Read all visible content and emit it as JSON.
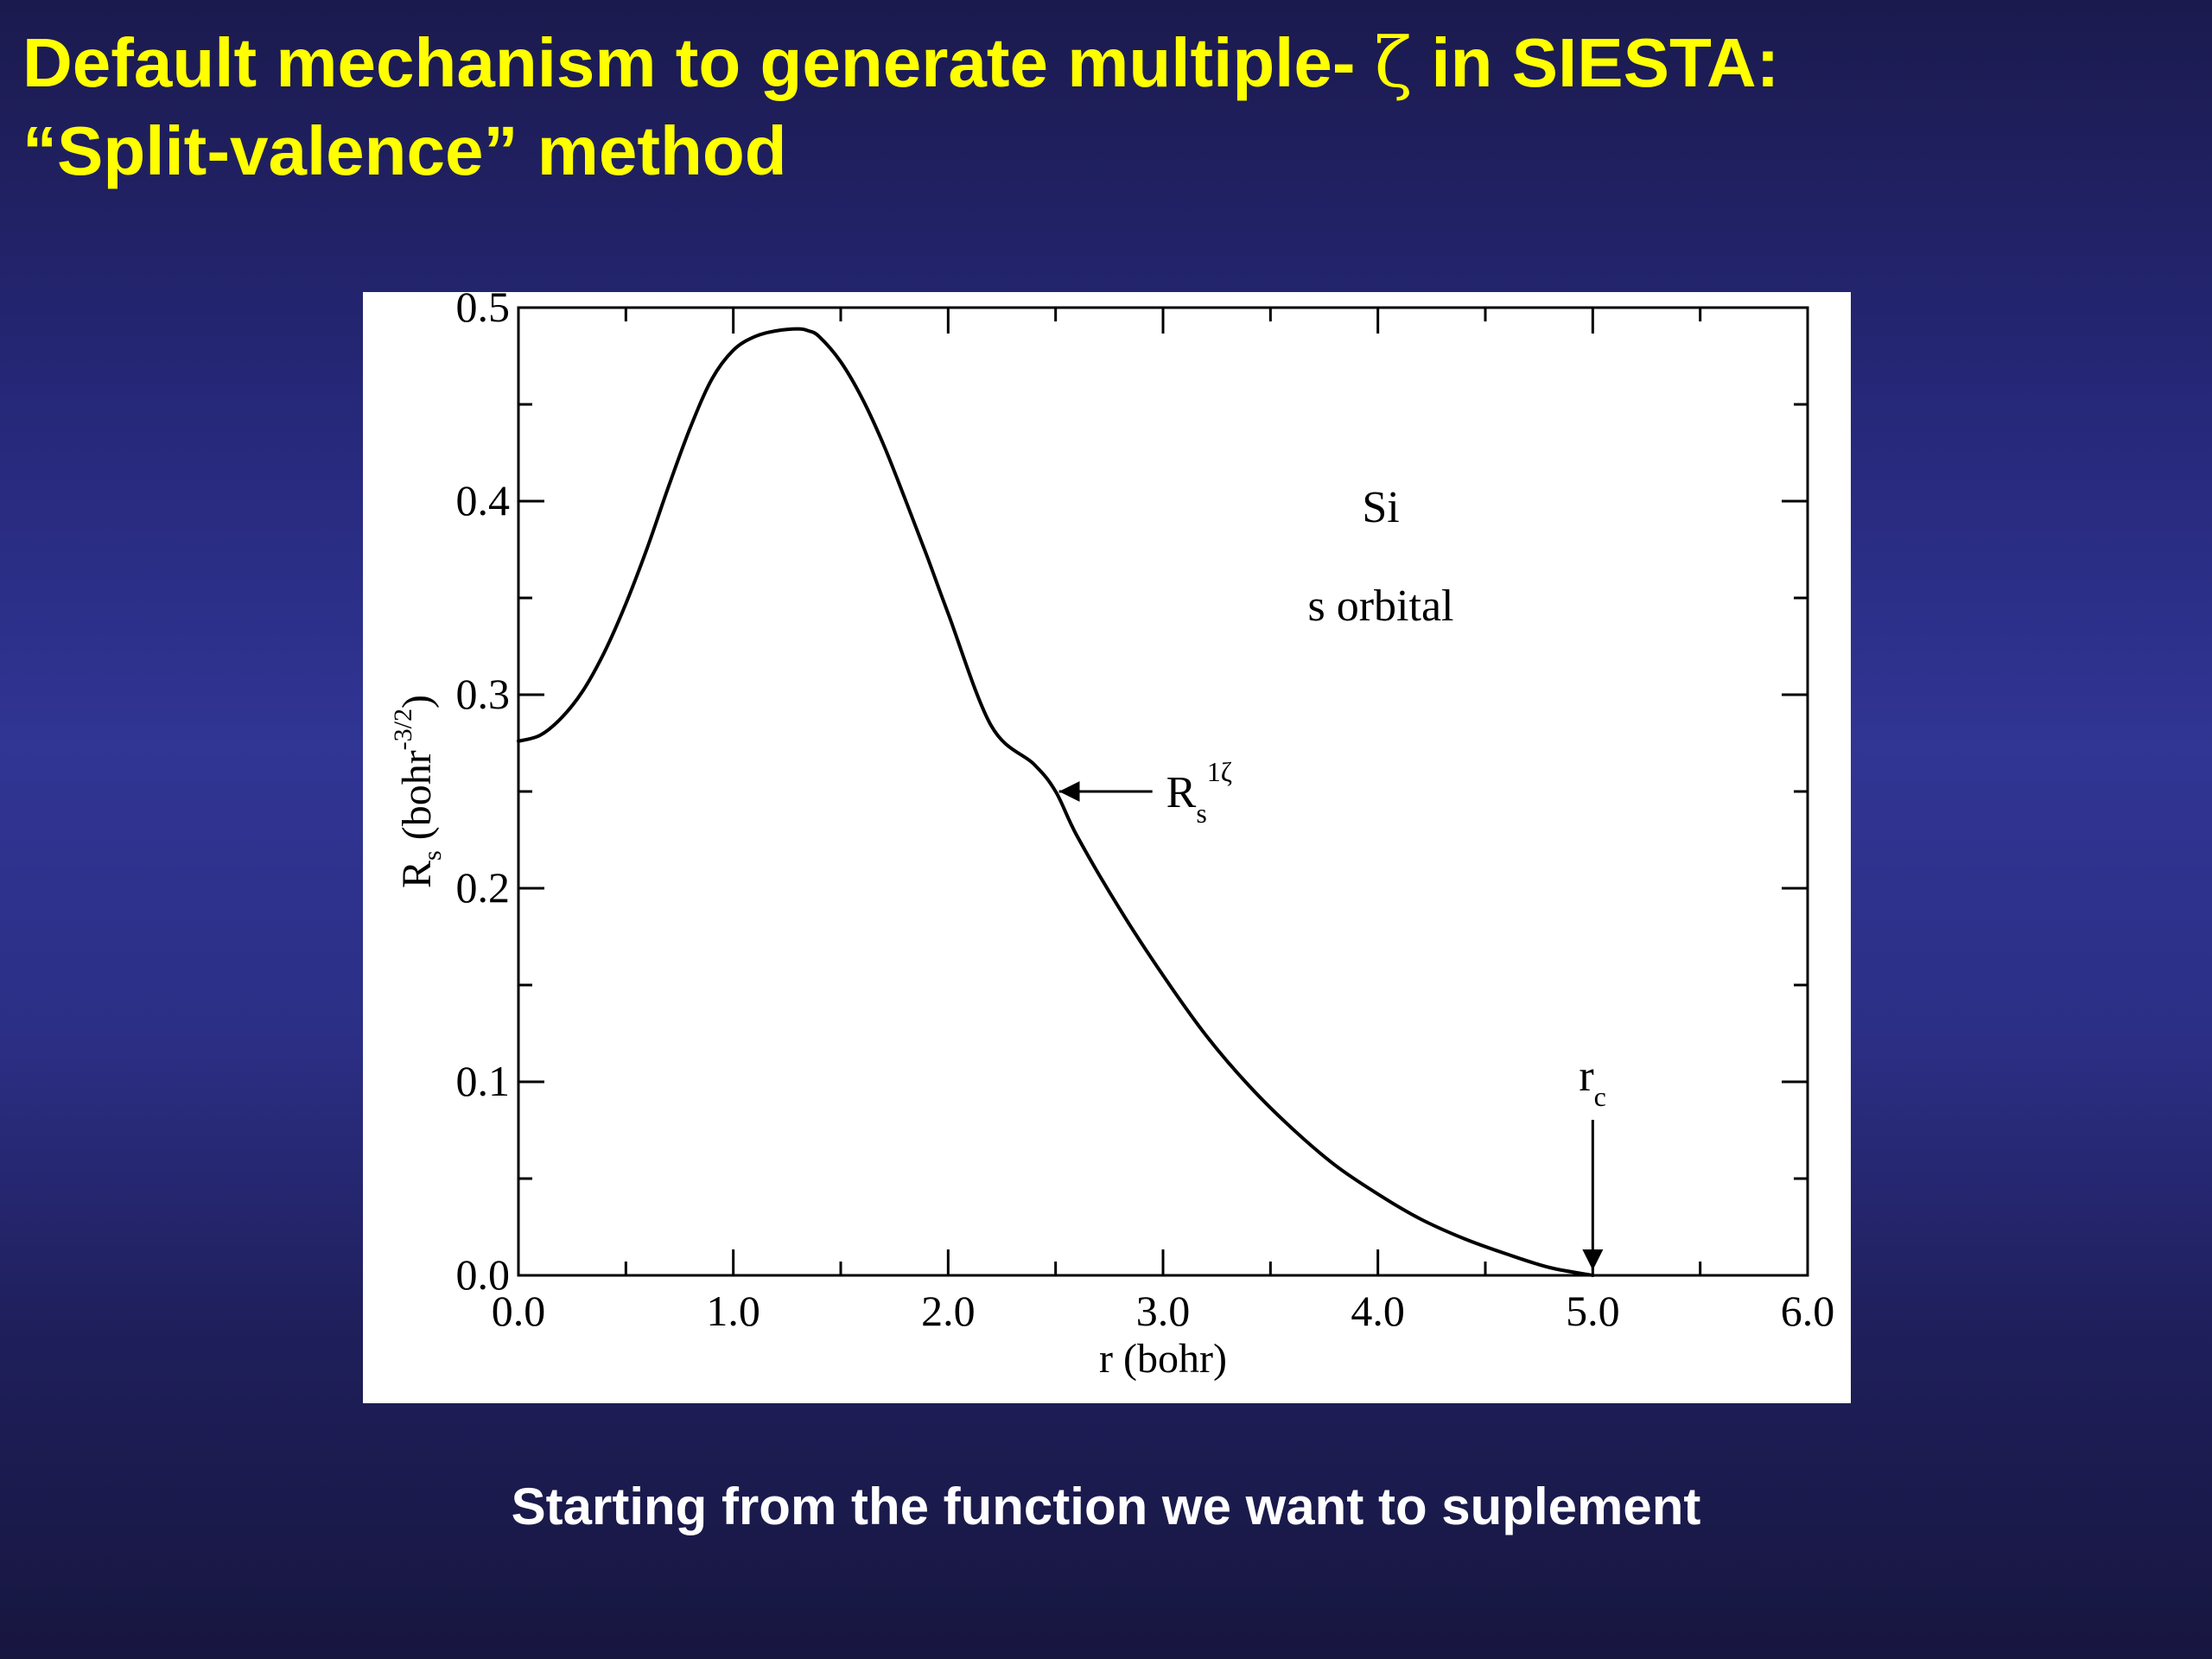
{
  "slide": {
    "title_line1_part1": "Default mechanism to generate multiple- ",
    "title_zeta": "ζ",
    "title_line1_part2": " in SIESTA:",
    "title_line2": "“Split-valence” method",
    "caption": "Starting from the function we want to suplement"
  },
  "colors": {
    "title": "#ffff00",
    "caption": "#ffffff",
    "background": "#2c2f86",
    "plot_background": "#ffffff",
    "curve": "#000000"
  },
  "chart_data": {
    "type": "line",
    "xlim": [
      0.0,
      6.0
    ],
    "ylim": [
      0.0,
      0.5
    ],
    "x_ticks": [
      "0.0",
      "1.0",
      "2.0",
      "3.0",
      "4.0",
      "5.0",
      "6.0"
    ],
    "y_ticks": [
      "0.0",
      "0.1",
      "0.2",
      "0.3",
      "0.4",
      "0.5"
    ],
    "xlabel": "r (bohr)",
    "ylabel_main": "R",
    "ylabel_sub": "s",
    "ylabel_unit": " (bohr",
    "ylabel_exp": "-3/2",
    "ylabel_close": ")",
    "grid": false,
    "annotations": {
      "element": "Si",
      "orbital": "s orbital",
      "curve_label_main": "R",
      "curve_label_sub": "s",
      "curve_label_sup": "1ζ",
      "curve_label_points_to": [
        2.5,
        0.25
      ],
      "rc_label_main": "r",
      "rc_label_sub": "c",
      "rc_points_to": [
        5.0,
        0.0
      ]
    },
    "series": [
      {
        "x": [
          0.0,
          0.1,
          0.2,
          0.3,
          0.4,
          0.5,
          0.6,
          0.7,
          0.8,
          0.9,
          1.0,
          1.1,
          1.2,
          1.3,
          1.35,
          1.4,
          1.5,
          1.6,
          1.7,
          1.8,
          1.9,
          2.0,
          2.2,
          2.4,
          2.5,
          2.6,
          2.8,
          3.0,
          3.2,
          3.4,
          3.6,
          3.8,
          4.0,
          4.2,
          4.4,
          4.6,
          4.8,
          5.0
        ],
        "y": [
          0.276,
          0.279,
          0.288,
          0.302,
          0.322,
          0.347,
          0.376,
          0.408,
          0.438,
          0.463,
          0.478,
          0.485,
          0.488,
          0.489,
          0.488,
          0.485,
          0.472,
          0.453,
          0.429,
          0.401,
          0.372,
          0.342,
          0.284,
          0.264,
          0.25,
          0.227,
          0.189,
          0.155,
          0.124,
          0.098,
          0.076,
          0.057,
          0.042,
          0.029,
          0.019,
          0.011,
          0.004,
          0.0
        ]
      }
    ]
  }
}
